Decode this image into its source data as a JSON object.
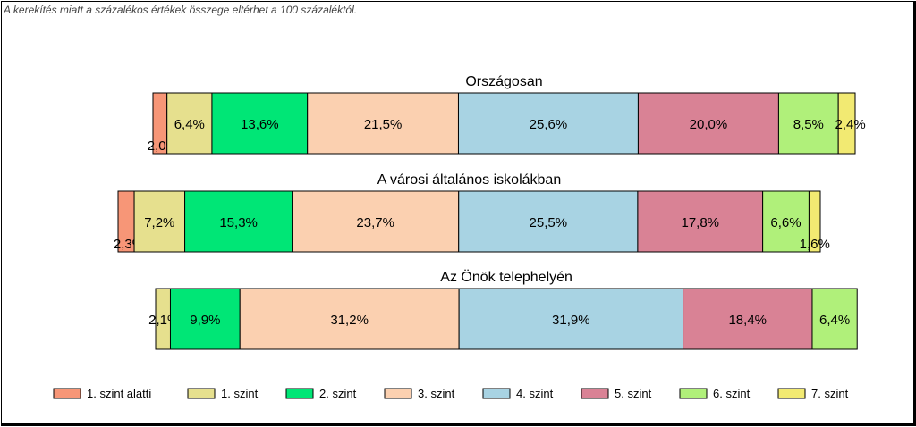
{
  "note": "A kerekítés miatt a  százalékos értékek összege eltérhet a 100 százaléktól.",
  "chart_data": {
    "type": "bar",
    "orientation": "horizontal-stacked-100",
    "series": [
      {
        "name": "1. szint alatti",
        "color": "#F79677"
      },
      {
        "name": "1. szint",
        "color": "#E6E08E"
      },
      {
        "name": "2. szint",
        "color": "#00E676"
      },
      {
        "name": "3. szint",
        "color": "#FBD0B0"
      },
      {
        "name": "4. szint",
        "color": "#A8D3E3"
      },
      {
        "name": "5. szint",
        "color": "#D98295"
      },
      {
        "name": "6. szint",
        "color": "#B0F07A"
      },
      {
        "name": "7. szint",
        "color": "#F2EA72"
      }
    ],
    "rows": [
      {
        "title": "Országosan",
        "values": [
          2.0,
          6.4,
          13.6,
          21.5,
          25.6,
          20.0,
          8.5,
          2.4
        ],
        "labels": [
          "2,0%",
          "6,4%",
          "13,6%",
          "21,5%",
          "25,6%",
          "20,0%",
          "8,5%",
          "2,4%"
        ]
      },
      {
        "title": "A városi általános iskolákban",
        "values": [
          2.3,
          7.2,
          15.3,
          23.7,
          25.5,
          17.8,
          6.6,
          1.6
        ],
        "labels": [
          "2,3%",
          "7,2%",
          "15,3%",
          "23,7%",
          "25,5%",
          "17,8%",
          "6,6%",
          "1,6%"
        ]
      },
      {
        "title": "Az Önök telephelyén",
        "values": [
          0,
          2.1,
          9.9,
          31.2,
          31.9,
          18.4,
          6.4,
          0
        ],
        "labels": [
          "",
          "2,1%",
          "9,9%",
          "31,2%",
          "31,9%",
          "18,4%",
          "6,4%",
          ""
        ]
      }
    ],
    "legend_position": "bottom"
  }
}
